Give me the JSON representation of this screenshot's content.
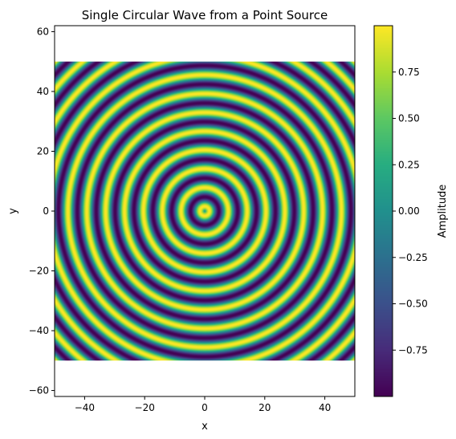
{
  "chart_data": {
    "type": "heatmap",
    "title": "Single Circular Wave from a Point Source",
    "xlabel": "x",
    "ylabel": "y",
    "xlim": [
      -50,
      50
    ],
    "ylim": [
      -62,
      62
    ],
    "extent": {
      "x": [
        -50,
        50
      ],
      "y": [
        -50,
        50
      ]
    },
    "function": "sin(r)",
    "source": {
      "x": 0,
      "y": 0
    },
    "colormap": "viridis",
    "x_ticks": [
      -40,
      -20,
      0,
      20,
      40
    ],
    "x_tick_labels": [
      "−40",
      "−20",
      "0",
      "20",
      "40"
    ],
    "y_ticks": [
      -60,
      -40,
      -20,
      0,
      20,
      40,
      60
    ],
    "y_tick_labels": [
      "−60",
      "−40",
      "−20",
      "0",
      "20",
      "40",
      "60"
    ],
    "colorbar": {
      "label": "Amplitude",
      "range": [
        -1,
        1
      ],
      "ticks": [
        -0.75,
        -0.5,
        -0.25,
        0,
        0.25,
        0.5,
        0.75
      ],
      "tick_labels": [
        "−0.75",
        "−0.50",
        "−0.25",
        "0.00",
        "0.25",
        "0.50",
        "0.75"
      ]
    }
  }
}
